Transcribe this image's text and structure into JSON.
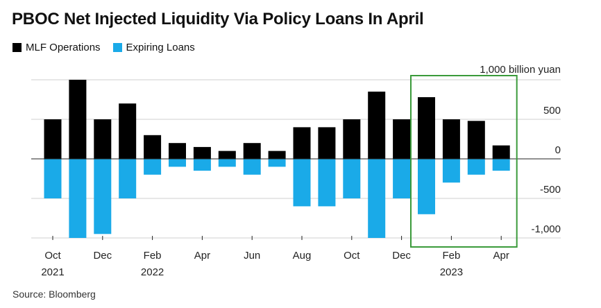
{
  "title": "PBOC Net Injected Liquidity Via Policy Loans In April",
  "source": "Source: Bloomberg",
  "chart_data": {
    "type": "bar",
    "title": "PBOC Net Injected Liquidity Via Policy Loans In April",
    "ylabel": "billion yuan",
    "ylim": [
      -1000,
      1000
    ],
    "yticks": [
      {
        "value": 1000,
        "label": "1,000 billion yuan"
      },
      {
        "value": 500,
        "label": "500"
      },
      {
        "value": 0,
        "label": "0"
      },
      {
        "value": -500,
        "label": "-500"
      },
      {
        "value": -1000,
        "label": "-1,000"
      }
    ],
    "xtick_labels": [
      {
        "index": 0,
        "label": "Oct",
        "year": "2021"
      },
      {
        "index": 2,
        "label": "Dec",
        "year": ""
      },
      {
        "index": 4,
        "label": "Feb",
        "year": "2022"
      },
      {
        "index": 6,
        "label": "Apr",
        "year": ""
      },
      {
        "index": 8,
        "label": "Jun",
        "year": ""
      },
      {
        "index": 10,
        "label": "Aug",
        "year": ""
      },
      {
        "index": 12,
        "label": "Oct",
        "year": ""
      },
      {
        "index": 14,
        "label": "Dec",
        "year": ""
      },
      {
        "index": 16,
        "label": "Feb",
        "year": "2023"
      },
      {
        "index": 18,
        "label": "Apr",
        "year": ""
      }
    ],
    "categories": [
      "Oct 2021",
      "Nov 2021",
      "Dec 2021",
      "Jan 2022",
      "Feb 2022",
      "Mar 2022",
      "Apr 2022",
      "May 2022",
      "Jun 2022",
      "Jul 2022",
      "Aug 2022",
      "Sep 2022",
      "Oct 2022",
      "Nov 2022",
      "Dec 2022",
      "Jan 2023",
      "Feb 2023",
      "Mar 2023",
      "Apr 2023"
    ],
    "series": [
      {
        "name": "MLF Operations",
        "color": "#000000",
        "values": [
          500,
          1000,
          500,
          700,
          300,
          200,
          150,
          100,
          200,
          100,
          400,
          400,
          500,
          850,
          500,
          780,
          500,
          480,
          170
        ]
      },
      {
        "name": "Expiring Loans",
        "color": "#1aaae8",
        "values": [
          -500,
          -1000,
          -950,
          -500,
          -200,
          -100,
          -150,
          -100,
          -200,
          -100,
          -600,
          -600,
          -500,
          -1000,
          -500,
          -700,
          -300,
          -200,
          -150
        ]
      }
    ],
    "highlight": {
      "from_index": 15,
      "to_index": 18,
      "color": "#3a9a3a"
    },
    "grid": true,
    "legend": "top-left"
  }
}
